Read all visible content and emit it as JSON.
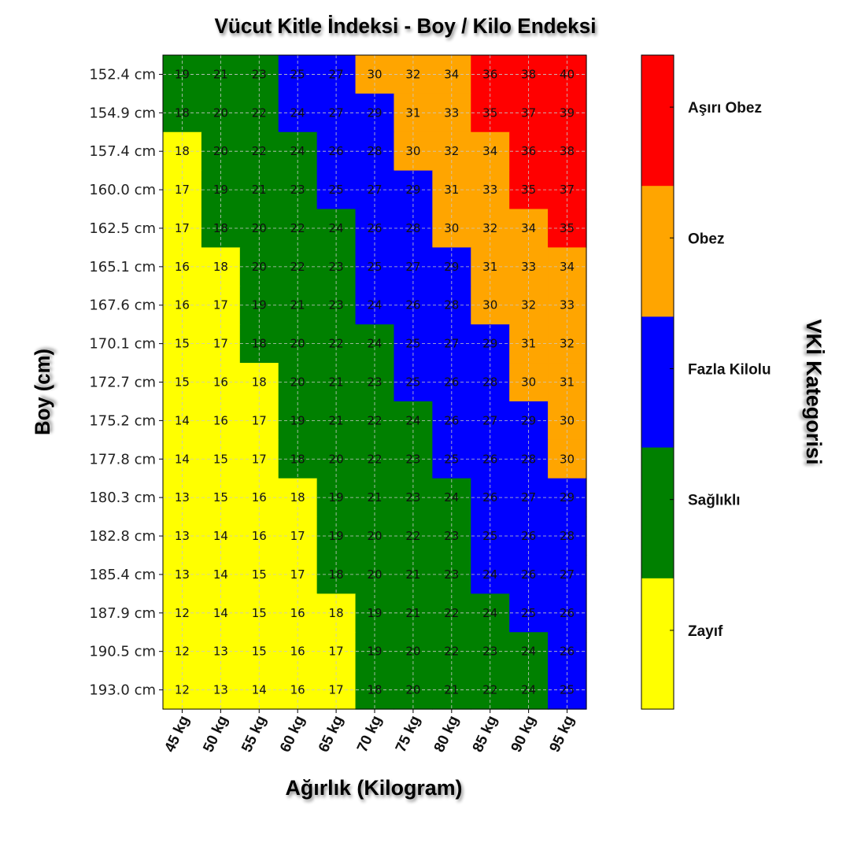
{
  "chart_data": {
    "type": "heatmap",
    "title": "Vücut Kitle İndeksi - Boy / Kilo Endeksi",
    "xlabel": "Ağırlık (Kilogram)",
    "ylabel": "Boy (cm)",
    "colorbar_label": "VKİ Kategorisi",
    "grid": true,
    "legend_position": "right",
    "x_categories": [
      "45 kg",
      "50 kg",
      "55 kg",
      "60 kg",
      "65 kg",
      "70 kg",
      "75 kg",
      "80 kg",
      "85 kg",
      "90 kg",
      "95 kg"
    ],
    "y_categories": [
      "152.4 cm",
      "154.9 cm",
      "157.4 cm",
      "160.0 cm",
      "162.5 cm",
      "165.1 cm",
      "167.6 cm",
      "170.1 cm",
      "172.7 cm",
      "175.2 cm",
      "177.8 cm",
      "180.3 cm",
      "182.8 cm",
      "185.4 cm",
      "187.9 cm",
      "190.5 cm",
      "193.0 cm"
    ],
    "values": [
      [
        19,
        21,
        23,
        25,
        27,
        30,
        32,
        34,
        36,
        38,
        40
      ],
      [
        18,
        20,
        22,
        24,
        27,
        29,
        31,
        33,
        35,
        37,
        39
      ],
      [
        18,
        20,
        22,
        24,
        26,
        28,
        30,
        32,
        34,
        36,
        38
      ],
      [
        17,
        19,
        21,
        23,
        25,
        27,
        29,
        31,
        33,
        35,
        37
      ],
      [
        17,
        18,
        20,
        22,
        24,
        26,
        28,
        30,
        32,
        34,
        35
      ],
      [
        16,
        18,
        20,
        22,
        23,
        25,
        27,
        29,
        31,
        33,
        34
      ],
      [
        16,
        17,
        19,
        21,
        23,
        24,
        26,
        28,
        30,
        32,
        33
      ],
      [
        15,
        17,
        18,
        20,
        22,
        24,
        25,
        27,
        29,
        31,
        32
      ],
      [
        15,
        16,
        18,
        20,
        21,
        23,
        25,
        26,
        28,
        30,
        31
      ],
      [
        14,
        16,
        17,
        19,
        21,
        22,
        24,
        26,
        27,
        29,
        30
      ],
      [
        14,
        15,
        17,
        18,
        20,
        22,
        23,
        25,
        26,
        28,
        30
      ],
      [
        13,
        15,
        16,
        18,
        19,
        21,
        23,
        24,
        26,
        27,
        29
      ],
      [
        13,
        14,
        16,
        17,
        19,
        20,
        22,
        23,
        25,
        26,
        28
      ],
      [
        13,
        14,
        15,
        17,
        18,
        20,
        21,
        23,
        24,
        26,
        27
      ],
      [
        12,
        14,
        15,
        16,
        18,
        19,
        21,
        22,
        24,
        25,
        26
      ],
      [
        12,
        13,
        15,
        16,
        17,
        19,
        20,
        22,
        23,
        24,
        26
      ],
      [
        12,
        13,
        14,
        16,
        17,
        18,
        20,
        21,
        22,
        24,
        25
      ]
    ],
    "categories": [
      {
        "name": "Zayıf",
        "color": "#ffff00"
      },
      {
        "name": "Sağlıklı",
        "color": "#008000"
      },
      {
        "name": "Fazla Kilolu",
        "color": "#0000ff"
      },
      {
        "name": "Obez",
        "color": "#ffa500"
      },
      {
        "name": "Aşırı Obez",
        "color": "#ff0000"
      }
    ],
    "category_grid": [
      [
        1,
        1,
        1,
        2,
        2,
        3,
        3,
        3,
        4,
        4,
        4
      ],
      [
        1,
        1,
        1,
        2,
        2,
        2,
        3,
        3,
        4,
        4,
        4
      ],
      [
        0,
        1,
        1,
        1,
        2,
        2,
        3,
        3,
        3,
        4,
        4
      ],
      [
        0,
        1,
        1,
        1,
        2,
        2,
        2,
        3,
        3,
        4,
        4
      ],
      [
        0,
        1,
        1,
        1,
        1,
        2,
        2,
        3,
        3,
        3,
        4
      ],
      [
        0,
        0,
        1,
        1,
        1,
        2,
        2,
        2,
        3,
        3,
        3
      ],
      [
        0,
        0,
        1,
        1,
        1,
        2,
        2,
        2,
        3,
        3,
        3
      ],
      [
        0,
        0,
        1,
        1,
        1,
        1,
        2,
        2,
        2,
        3,
        3
      ],
      [
        0,
        0,
        0,
        1,
        1,
        1,
        2,
        2,
        2,
        3,
        3
      ],
      [
        0,
        0,
        0,
        1,
        1,
        1,
        1,
        2,
        2,
        2,
        3
      ],
      [
        0,
        0,
        0,
        1,
        1,
        1,
        1,
        2,
        2,
        2,
        3
      ],
      [
        0,
        0,
        0,
        0,
        1,
        1,
        1,
        1,
        2,
        2,
        2
      ],
      [
        0,
        0,
        0,
        0,
        1,
        1,
        1,
        1,
        2,
        2,
        2
      ],
      [
        0,
        0,
        0,
        0,
        1,
        1,
        1,
        1,
        2,
        2,
        2
      ],
      [
        0,
        0,
        0,
        0,
        0,
        1,
        1,
        1,
        1,
        2,
        2
      ],
      [
        0,
        0,
        0,
        0,
        0,
        1,
        1,
        1,
        1,
        1,
        2
      ],
      [
        0,
        0,
        0,
        0,
        0,
        1,
        1,
        1,
        1,
        1,
        2
      ]
    ]
  }
}
